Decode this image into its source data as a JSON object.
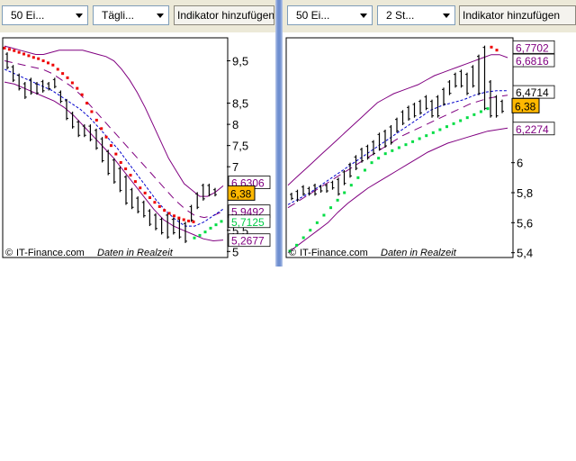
{
  "toolbar_left": {
    "count": "50 Ei...",
    "interval": "Tägli...",
    "indicator_button": "Indikator hinzufügen"
  },
  "toolbar_right": {
    "count": "50 Ei...",
    "interval": "2 St...",
    "indicator_button": "Indikator hinzufügen"
  },
  "watermark": {
    "brand": "IT-Finance.com",
    "note": "Daten in Realzeit"
  },
  "colors": {
    "band": "#800080",
    "ma": "#800080",
    "ma_short": "#0000cc",
    "sar_down": "#ee0000",
    "sar_up": "#00dd44",
    "price_tag": "#ffb800",
    "candle": "#000000"
  },
  "chart_data": [
    {
      "type": "line",
      "ylim": [
        4.9,
        10.0
      ],
      "yticks": [
        {
          "label": "9,5",
          "value": 9.5
        },
        {
          "label": "8,5",
          "value": 8.5
        },
        {
          "label": "8",
          "value": 8.0
        },
        {
          "label": "7,5",
          "value": 7.5
        },
        {
          "label": "7",
          "value": 7.0
        },
        {
          "label": "5,5",
          "value": 5.5
        },
        {
          "label": "5",
          "value": 5.0
        }
      ],
      "value_labels": [
        {
          "text": "6,6306",
          "value": 6.6306,
          "color": "#800080"
        },
        {
          "text": "6,38",
          "value": 6.38,
          "color": "#000000",
          "highlight": true
        },
        {
          "text": "5,9492",
          "value": 5.9492,
          "color": "#800080"
        },
        {
          "text": "5,7125",
          "value": 5.7125,
          "color": "#00cc44"
        },
        {
          "text": "5,2677",
          "value": 5.2677,
          "color": "#800080"
        }
      ],
      "hidden_label_fragment": "714",
      "candles": [
        [
          9.7,
          9.3
        ],
        [
          9.4,
          9.0
        ],
        [
          9.2,
          8.8
        ],
        [
          9.0,
          8.6
        ],
        [
          9.1,
          8.7
        ],
        [
          9.0,
          8.7
        ],
        [
          9.05,
          8.75
        ],
        [
          9.0,
          8.8
        ],
        [
          9.1,
          8.85
        ],
        [
          8.8,
          8.5
        ],
        [
          8.6,
          8.1
        ],
        [
          8.3,
          7.9
        ],
        [
          8.1,
          7.7
        ],
        [
          8.0,
          7.7
        ],
        [
          8.0,
          7.6
        ],
        [
          7.9,
          7.4
        ],
        [
          7.7,
          7.1
        ],
        [
          7.4,
          6.8
        ],
        [
          7.2,
          6.6
        ],
        [
          7.0,
          6.4
        ],
        [
          6.8,
          6.1
        ],
        [
          6.5,
          6.0
        ],
        [
          6.3,
          5.9
        ],
        [
          6.2,
          5.8
        ],
        [
          6.0,
          5.6
        ],
        [
          5.9,
          5.5
        ],
        [
          5.8,
          5.4
        ],
        [
          5.9,
          5.3
        ],
        [
          5.8,
          5.4
        ],
        [
          5.8,
          5.3
        ],
        [
          5.7,
          5.2
        ],
        [
          6.1,
          5.7
        ],
        [
          6.4,
          6.0
        ],
        [
          6.6,
          6.2
        ],
        [
          6.6,
          6.3
        ],
        [
          6.5,
          6.3
        ]
      ],
      "upper_band": [
        9.85,
        9.8,
        9.75,
        9.7,
        9.65,
        9.65,
        9.7,
        9.75,
        9.75,
        9.75,
        9.75,
        9.7,
        9.65,
        9.6,
        9.5,
        9.3,
        9.05,
        8.75,
        8.4,
        8.0,
        7.6,
        7.2,
        6.9,
        6.6,
        6.45,
        6.3,
        6.3,
        6.4,
        6.55
      ],
      "lower_band": [
        9.0,
        8.95,
        8.85,
        8.75,
        8.65,
        8.55,
        8.4,
        8.2,
        7.95,
        7.7,
        7.45,
        7.2,
        6.9,
        6.6,
        6.3,
        6.0,
        5.75,
        5.6,
        5.5,
        5.4,
        5.3,
        5.25,
        5.27
      ],
      "ma_long": [
        9.5,
        9.45,
        9.4,
        9.35,
        9.3,
        9.2,
        9.05,
        8.9,
        8.7,
        8.45,
        8.2,
        7.95,
        7.7,
        7.45,
        7.2,
        6.95,
        6.7,
        6.45,
        6.2,
        6.0,
        5.85,
        5.8,
        5.85,
        5.95
      ],
      "ma_short": [
        9.3,
        9.2,
        9.1,
        9.0,
        8.9,
        8.8,
        8.65,
        8.5,
        8.35,
        8.15,
        7.9,
        7.65,
        7.4,
        7.1,
        6.8,
        6.5,
        6.2,
        5.95,
        5.75,
        5.6,
        5.6,
        5.7,
        5.85,
        6.0
      ],
      "sar_down": [
        9.8,
        9.77,
        9.74,
        9.7,
        9.66,
        9.62,
        9.58,
        9.55,
        9.5,
        9.45,
        9.4,
        9.3,
        9.2,
        9.1,
        8.98,
        8.85,
        8.7,
        8.5,
        8.3,
        8.1,
        7.9,
        7.7,
        7.5,
        7.3,
        7.1,
        6.95,
        6.8,
        6.65,
        6.5,
        6.38,
        6.27,
        6.16,
        6.06,
        5.97,
        5.9,
        5.84,
        5.79,
        5.75,
        5.72,
        5.7
      ],
      "sar_up": [
        5.32,
        5.38,
        5.46,
        5.55,
        5.63,
        5.71
      ]
    },
    {
      "type": "line",
      "ylim": [
        5.38,
        6.82
      ],
      "yticks": [
        {
          "label": "6",
          "value": 6.0
        },
        {
          "label": "5,8",
          "value": 5.8
        },
        {
          "label": "5,6",
          "value": 5.6
        },
        {
          "label": "5,4",
          "value": 5.4
        }
      ],
      "value_labels": [
        {
          "text": "6,7702",
          "value": 6.7702,
          "color": "#800080"
        },
        {
          "text": "6,6816",
          "value": 6.6816,
          "color": "#800080"
        },
        {
          "text": "6,4714",
          "value": 6.4714,
          "color": "#000000"
        },
        {
          "text": "6,38",
          "value": 6.38,
          "color": "#000000",
          "highlight": true
        },
        {
          "text": "6,2274",
          "value": 6.2274,
          "color": "#800080"
        }
      ],
      "candles": [
        [
          5.8,
          5.75
        ],
        [
          5.82,
          5.74
        ],
        [
          5.85,
          5.78
        ],
        [
          5.84,
          5.78
        ],
        [
          5.86,
          5.78
        ],
        [
          5.85,
          5.8
        ],
        [
          5.86,
          5.8
        ],
        [
          5.88,
          5.82
        ],
        [
          5.9,
          5.78
        ],
        [
          5.95,
          5.85
        ],
        [
          6.0,
          5.9
        ],
        [
          6.05,
          5.95
        ],
        [
          6.1,
          6.0
        ],
        [
          6.12,
          6.02
        ],
        [
          6.15,
          6.05
        ],
        [
          6.2,
          6.08
        ],
        [
          6.22,
          6.1
        ],
        [
          6.25,
          6.12
        ],
        [
          6.3,
          6.2
        ],
        [
          6.35,
          6.25
        ],
        [
          6.38,
          6.28
        ],
        [
          6.4,
          6.3
        ],
        [
          6.42,
          6.32
        ],
        [
          6.45,
          6.35
        ],
        [
          6.42,
          6.3
        ],
        [
          6.45,
          6.3
        ],
        [
          6.5,
          6.38
        ],
        [
          6.55,
          6.45
        ],
        [
          6.6,
          6.5
        ],
        [
          6.62,
          6.5
        ],
        [
          6.6,
          6.45
        ],
        [
          6.65,
          6.5
        ],
        [
          6.72,
          6.45
        ],
        [
          6.78,
          6.35
        ],
        [
          6.55,
          6.3
        ],
        [
          6.45,
          6.3
        ],
        [
          6.42,
          6.33
        ]
      ],
      "upper_band": [
        5.85,
        5.9,
        5.95,
        6.0,
        6.05,
        6.1,
        6.15,
        6.2,
        6.25,
        6.3,
        6.35,
        6.4,
        6.43,
        6.46,
        6.48,
        6.5,
        6.52,
        6.55,
        6.58,
        6.6,
        6.62,
        6.64,
        6.66,
        6.68,
        6.7,
        6.72,
        6.72,
        6.7
      ],
      "lower_band": [
        5.4,
        5.45,
        5.5,
        5.55,
        5.6,
        5.67,
        5.73,
        5.78,
        5.83,
        5.87,
        5.91,
        5.95,
        5.99,
        6.03,
        6.07,
        6.1,
        6.13,
        6.15,
        6.17,
        6.19,
        6.21,
        6.22,
        6.23
      ],
      "ma_long": [
        5.7,
        5.74,
        5.78,
        5.82,
        5.86,
        5.9,
        5.94,
        5.98,
        6.02,
        6.06,
        6.1,
        6.14,
        6.18,
        6.21,
        6.24,
        6.27,
        6.3,
        6.33,
        6.36,
        6.39,
        6.41,
        6.43,
        6.44,
        6.45
      ],
      "ma_short": [
        5.72,
        5.76,
        5.8,
        5.85,
        5.9,
        5.95,
        6.0,
        6.05,
        6.1,
        6.15,
        6.2,
        6.25,
        6.3,
        6.35,
        6.38,
        6.4,
        6.42,
        6.45,
        6.47,
        6.48,
        6.48
      ],
      "sar_up": [
        5.41,
        5.45,
        5.5,
        5.55,
        5.6,
        5.65,
        5.7,
        5.75,
        5.8,
        5.85,
        5.9,
        5.95,
        6.0,
        6.03,
        6.06,
        6.08,
        6.1,
        6.12,
        6.14,
        6.16,
        6.18,
        6.2,
        6.22,
        6.24,
        6.26,
        6.28,
        6.3,
        6.32,
        6.34,
        6.36
      ],
      "sar_down": [
        6.77,
        6.75
      ]
    }
  ]
}
